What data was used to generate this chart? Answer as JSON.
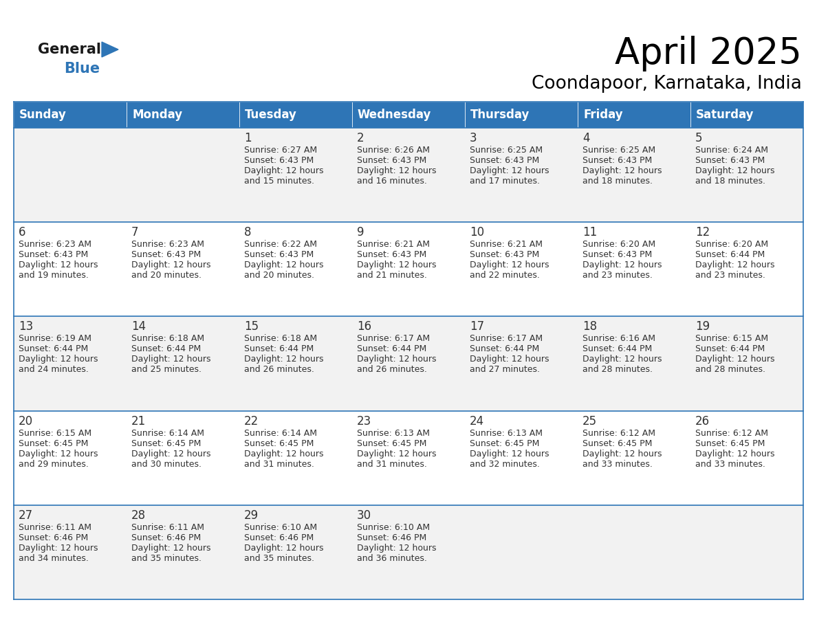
{
  "title": "April 2025",
  "subtitle": "Coondapoor, Karnataka, India",
  "header_color": "#2E75B6",
  "header_text_color": "#FFFFFF",
  "cell_bg_even": "#F2F2F2",
  "cell_bg_odd": "#FFFFFF",
  "border_color": "#2E75B6",
  "text_color": "#333333",
  "day_names": [
    "Sunday",
    "Monday",
    "Tuesday",
    "Wednesday",
    "Thursday",
    "Friday",
    "Saturday"
  ],
  "days": [
    {
      "day": 1,
      "col": 2,
      "row": 0,
      "sunrise": "6:27 AM",
      "sunset": "6:43 PM",
      "daylight": "12 hours and 15 minutes."
    },
    {
      "day": 2,
      "col": 3,
      "row": 0,
      "sunrise": "6:26 AM",
      "sunset": "6:43 PM",
      "daylight": "12 hours and 16 minutes."
    },
    {
      "day": 3,
      "col": 4,
      "row": 0,
      "sunrise": "6:25 AM",
      "sunset": "6:43 PM",
      "daylight": "12 hours and 17 minutes."
    },
    {
      "day": 4,
      "col": 5,
      "row": 0,
      "sunrise": "6:25 AM",
      "sunset": "6:43 PM",
      "daylight": "12 hours and 18 minutes."
    },
    {
      "day": 5,
      "col": 6,
      "row": 0,
      "sunrise": "6:24 AM",
      "sunset": "6:43 PM",
      "daylight": "12 hours and 18 minutes."
    },
    {
      "day": 6,
      "col": 0,
      "row": 1,
      "sunrise": "6:23 AM",
      "sunset": "6:43 PM",
      "daylight": "12 hours and 19 minutes."
    },
    {
      "day": 7,
      "col": 1,
      "row": 1,
      "sunrise": "6:23 AM",
      "sunset": "6:43 PM",
      "daylight": "12 hours and 20 minutes."
    },
    {
      "day": 8,
      "col": 2,
      "row": 1,
      "sunrise": "6:22 AM",
      "sunset": "6:43 PM",
      "daylight": "12 hours and 20 minutes."
    },
    {
      "day": 9,
      "col": 3,
      "row": 1,
      "sunrise": "6:21 AM",
      "sunset": "6:43 PM",
      "daylight": "12 hours and 21 minutes."
    },
    {
      "day": 10,
      "col": 4,
      "row": 1,
      "sunrise": "6:21 AM",
      "sunset": "6:43 PM",
      "daylight": "12 hours and 22 minutes."
    },
    {
      "day": 11,
      "col": 5,
      "row": 1,
      "sunrise": "6:20 AM",
      "sunset": "6:43 PM",
      "daylight": "12 hours and 23 minutes."
    },
    {
      "day": 12,
      "col": 6,
      "row": 1,
      "sunrise": "6:20 AM",
      "sunset": "6:44 PM",
      "daylight": "12 hours and 23 minutes."
    },
    {
      "day": 13,
      "col": 0,
      "row": 2,
      "sunrise": "6:19 AM",
      "sunset": "6:44 PM",
      "daylight": "12 hours and 24 minutes."
    },
    {
      "day": 14,
      "col": 1,
      "row": 2,
      "sunrise": "6:18 AM",
      "sunset": "6:44 PM",
      "daylight": "12 hours and 25 minutes."
    },
    {
      "day": 15,
      "col": 2,
      "row": 2,
      "sunrise": "6:18 AM",
      "sunset": "6:44 PM",
      "daylight": "12 hours and 26 minutes."
    },
    {
      "day": 16,
      "col": 3,
      "row": 2,
      "sunrise": "6:17 AM",
      "sunset": "6:44 PM",
      "daylight": "12 hours and 26 minutes."
    },
    {
      "day": 17,
      "col": 4,
      "row": 2,
      "sunrise": "6:17 AM",
      "sunset": "6:44 PM",
      "daylight": "12 hours and 27 minutes."
    },
    {
      "day": 18,
      "col": 5,
      "row": 2,
      "sunrise": "6:16 AM",
      "sunset": "6:44 PM",
      "daylight": "12 hours and 28 minutes."
    },
    {
      "day": 19,
      "col": 6,
      "row": 2,
      "sunrise": "6:15 AM",
      "sunset": "6:44 PM",
      "daylight": "12 hours and 28 minutes."
    },
    {
      "day": 20,
      "col": 0,
      "row": 3,
      "sunrise": "6:15 AM",
      "sunset": "6:45 PM",
      "daylight": "12 hours and 29 minutes."
    },
    {
      "day": 21,
      "col": 1,
      "row": 3,
      "sunrise": "6:14 AM",
      "sunset": "6:45 PM",
      "daylight": "12 hours and 30 minutes."
    },
    {
      "day": 22,
      "col": 2,
      "row": 3,
      "sunrise": "6:14 AM",
      "sunset": "6:45 PM",
      "daylight": "12 hours and 31 minutes."
    },
    {
      "day": 23,
      "col": 3,
      "row": 3,
      "sunrise": "6:13 AM",
      "sunset": "6:45 PM",
      "daylight": "12 hours and 31 minutes."
    },
    {
      "day": 24,
      "col": 4,
      "row": 3,
      "sunrise": "6:13 AM",
      "sunset": "6:45 PM",
      "daylight": "12 hours and 32 minutes."
    },
    {
      "day": 25,
      "col": 5,
      "row": 3,
      "sunrise": "6:12 AM",
      "sunset": "6:45 PM",
      "daylight": "12 hours and 33 minutes."
    },
    {
      "day": 26,
      "col": 6,
      "row": 3,
      "sunrise": "6:12 AM",
      "sunset": "6:45 PM",
      "daylight": "12 hours and 33 minutes."
    },
    {
      "day": 27,
      "col": 0,
      "row": 4,
      "sunrise": "6:11 AM",
      "sunset": "6:46 PM",
      "daylight": "12 hours and 34 minutes."
    },
    {
      "day": 28,
      "col": 1,
      "row": 4,
      "sunrise": "6:11 AM",
      "sunset": "6:46 PM",
      "daylight": "12 hours and 35 minutes."
    },
    {
      "day": 29,
      "col": 2,
      "row": 4,
      "sunrise": "6:10 AM",
      "sunset": "6:46 PM",
      "daylight": "12 hours and 35 minutes."
    },
    {
      "day": 30,
      "col": 3,
      "row": 4,
      "sunrise": "6:10 AM",
      "sunset": "6:46 PM",
      "daylight": "12 hours and 36 minutes."
    }
  ],
  "num_rows": 5,
  "num_cols": 7,
  "logo_general_color": "#1a1a1a",
  "logo_blue_color": "#2E75B6",
  "title_fontsize": 38,
  "subtitle_fontsize": 19,
  "header_fontsize": 12,
  "day_number_fontsize": 12,
  "cell_text_fontsize": 9
}
